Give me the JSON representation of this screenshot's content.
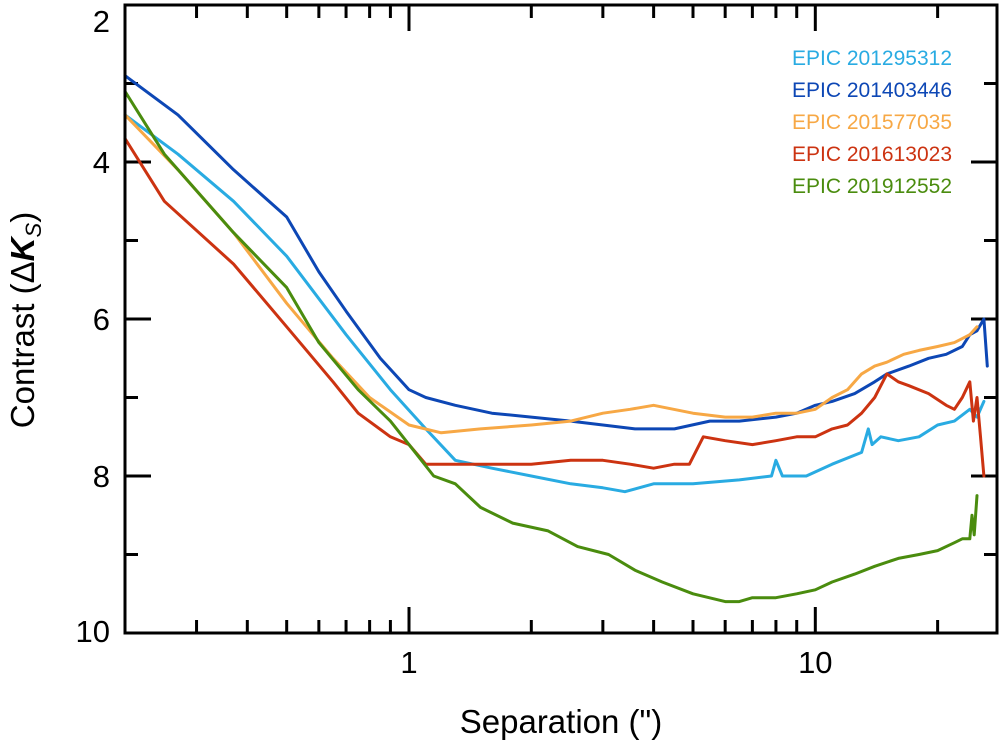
{
  "chart_data": {
    "type": "line",
    "title": "",
    "xlabel": "Separation (\")",
    "ylabel": {
      "prefix": "Contrast (",
      "delta": "Δ",
      "var": "K",
      "sub": "S",
      "suffix": ")"
    },
    "xscale": "log",
    "xlim": [
      0.2,
      28
    ],
    "ylim": [
      10,
      2
    ],
    "y_inverted": true,
    "grid": false,
    "legend_position": "top-right",
    "x_ticks": [
      {
        "value": 1,
        "label": "1"
      },
      {
        "value": 10,
        "label": "10"
      }
    ],
    "y_ticks": [
      {
        "value": 2,
        "label": "2"
      },
      {
        "value": 4,
        "label": "4"
      },
      {
        "value": 6,
        "label": "6"
      },
      {
        "value": 8,
        "label": "8"
      },
      {
        "value": 10,
        "label": "10"
      }
    ],
    "series": [
      {
        "name": "EPIC 201295312",
        "color": "#29abe2",
        "x": [
          0.2,
          0.27,
          0.37,
          0.5,
          0.7,
          0.9,
          1.1,
          1.3,
          1.6,
          2.0,
          2.5,
          3.0,
          3.4,
          4.0,
          5.0,
          6.5,
          7.8,
          8.0,
          8.3,
          9.5,
          11.0,
          13.0,
          13.5,
          13.8,
          14.5,
          16.0,
          18.0,
          20.0,
          22.0,
          24.0,
          25.0,
          26.0
        ],
        "values": [
          3.4,
          3.9,
          4.5,
          5.2,
          6.2,
          6.9,
          7.4,
          7.8,
          7.9,
          8.0,
          8.1,
          8.15,
          8.2,
          8.1,
          8.1,
          8.05,
          8.0,
          7.8,
          8.0,
          8.0,
          7.85,
          7.7,
          7.4,
          7.6,
          7.5,
          7.55,
          7.5,
          7.35,
          7.3,
          7.15,
          7.25,
          7.05
        ]
      },
      {
        "name": "EPIC 201403446",
        "color": "#0d47b5",
        "x": [
          0.2,
          0.27,
          0.37,
          0.5,
          0.6,
          0.7,
          0.85,
          1.0,
          1.1,
          1.3,
          1.6,
          2.0,
          2.5,
          3.0,
          3.6,
          4.5,
          5.5,
          6.5,
          8.0,
          9.0,
          10.0,
          11.0,
          12.5,
          14.0,
          15.0,
          17.0,
          19.0,
          21.0,
          23.0,
          24.0,
          25.0,
          26.0,
          26.5
        ],
        "values": [
          2.9,
          3.4,
          4.1,
          4.7,
          5.4,
          5.9,
          6.5,
          6.9,
          7.0,
          7.1,
          7.2,
          7.25,
          7.3,
          7.35,
          7.4,
          7.4,
          7.3,
          7.3,
          7.25,
          7.2,
          7.1,
          7.05,
          6.95,
          6.8,
          6.7,
          6.6,
          6.5,
          6.45,
          6.35,
          6.2,
          6.15,
          6.0,
          6.6
        ]
      },
      {
        "name": "EPIC 201577035",
        "color": "#f7a845",
        "x": [
          0.2,
          0.27,
          0.37,
          0.5,
          0.65,
          0.8,
          1.0,
          1.2,
          1.5,
          2.0,
          2.5,
          3.0,
          3.5,
          4.0,
          5.0,
          6.0,
          7.0,
          8.0,
          9.0,
          10.0,
          11.0,
          12.0,
          13.0,
          14.0,
          15.0,
          16.5,
          18.0,
          20.0,
          22.0,
          24.0,
          25.0
        ],
        "values": [
          3.4,
          4.1,
          4.9,
          5.8,
          6.5,
          7.0,
          7.35,
          7.45,
          7.4,
          7.35,
          7.3,
          7.2,
          7.15,
          7.1,
          7.2,
          7.25,
          7.25,
          7.2,
          7.2,
          7.15,
          7.0,
          6.9,
          6.7,
          6.6,
          6.55,
          6.45,
          6.4,
          6.35,
          6.3,
          6.2,
          6.1
        ]
      },
      {
        "name": "EPIC 201613023",
        "color": "#cc3311",
        "x": [
          0.2,
          0.25,
          0.37,
          0.5,
          0.65,
          0.75,
          0.9,
          1.0,
          1.1,
          1.3,
          1.6,
          2.0,
          2.5,
          3.0,
          3.5,
          4.0,
          4.5,
          4.9,
          5.3,
          6.0,
          7.0,
          8.0,
          9.0,
          10.0,
          11.0,
          12.0,
          13.0,
          14.0,
          15.0,
          16.0,
          17.0,
          19.0,
          21.0,
          22.0,
          23.0,
          24.0,
          24.5,
          25.0,
          25.5,
          26.0
        ],
        "values": [
          3.7,
          4.5,
          5.3,
          6.1,
          6.8,
          7.2,
          7.5,
          7.6,
          7.85,
          7.85,
          7.85,
          7.85,
          7.8,
          7.8,
          7.85,
          7.9,
          7.85,
          7.85,
          7.5,
          7.55,
          7.6,
          7.55,
          7.5,
          7.5,
          7.4,
          7.35,
          7.2,
          7.0,
          6.7,
          6.8,
          6.85,
          6.95,
          7.1,
          7.15,
          7.0,
          6.8,
          7.3,
          7.0,
          7.5,
          8.0
        ]
      },
      {
        "name": "EPIC 201912552",
        "color": "#4a8c0e",
        "x": [
          0.2,
          0.25,
          0.37,
          0.5,
          0.6,
          0.75,
          0.9,
          1.0,
          1.15,
          1.3,
          1.5,
          1.8,
          2.2,
          2.6,
          3.1,
          3.6,
          4.2,
          5.0,
          6.0,
          6.5,
          7.0,
          8.0,
          9.0,
          10.0,
          11.0,
          12.5,
          14.0,
          16.0,
          18.0,
          20.0,
          22.0,
          23.0,
          24.0,
          24.3,
          24.6,
          25.0
        ],
        "values": [
          3.1,
          3.9,
          4.9,
          5.6,
          6.3,
          6.9,
          7.3,
          7.6,
          8.0,
          8.1,
          8.4,
          8.6,
          8.7,
          8.9,
          9.0,
          9.2,
          9.35,
          9.5,
          9.6,
          9.6,
          9.55,
          9.55,
          9.5,
          9.45,
          9.35,
          9.25,
          9.15,
          9.05,
          9.0,
          8.95,
          8.85,
          8.8,
          8.8,
          8.5,
          8.75,
          8.25
        ]
      }
    ]
  }
}
